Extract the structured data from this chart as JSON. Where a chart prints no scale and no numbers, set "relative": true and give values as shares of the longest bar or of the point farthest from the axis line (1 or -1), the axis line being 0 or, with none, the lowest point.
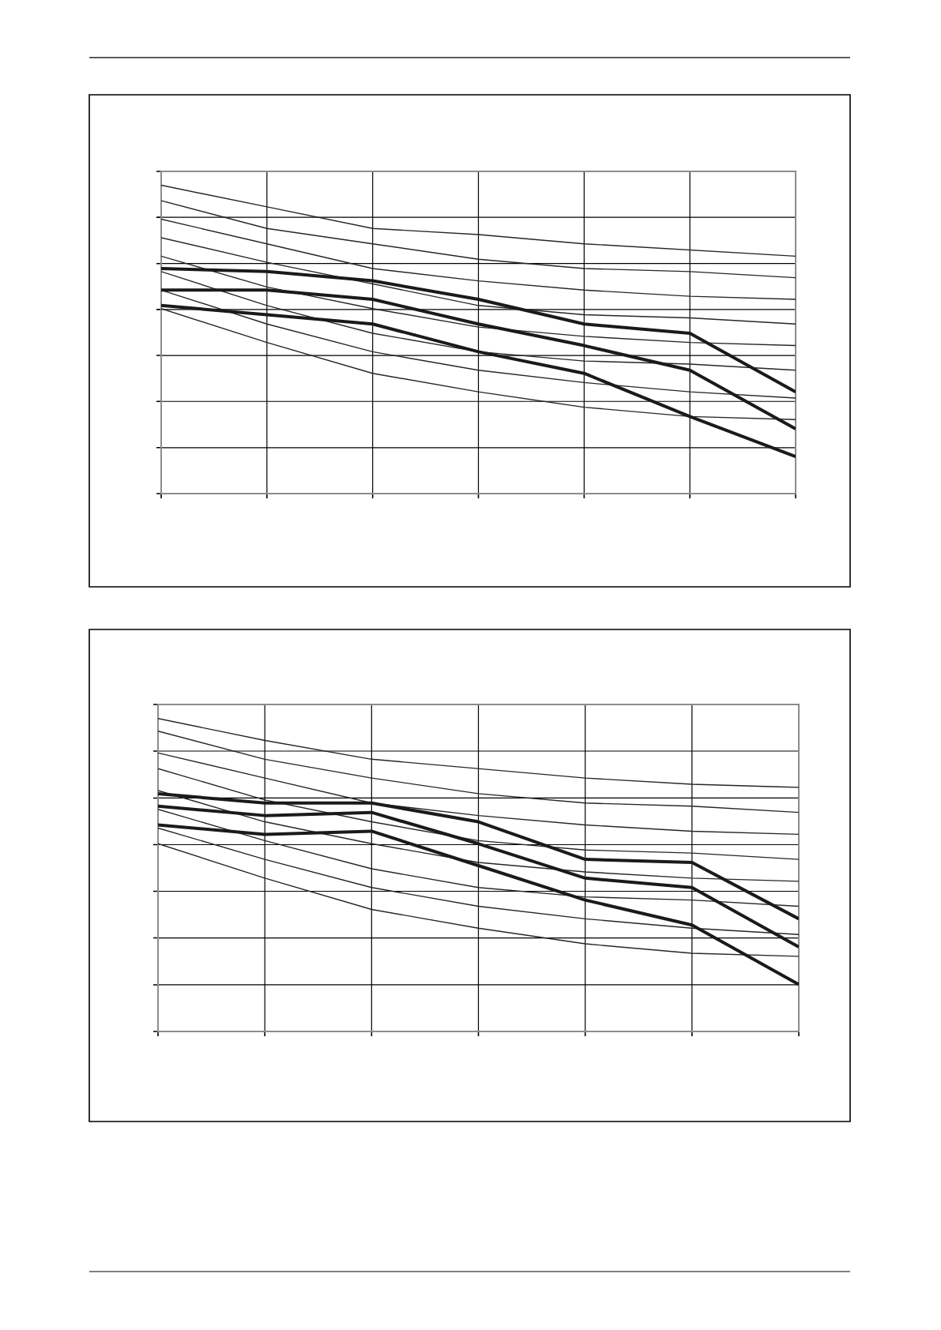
{
  "chart_data": [
    {
      "type": "line",
      "relative": true,
      "grid": true,
      "categories": [
        null,
        null,
        null,
        null,
        null,
        null,
        null
      ],
      "series": [
        {
          "color": "#262626",
          "values": [
            1.0,
            0.93,
            0.86,
            0.84,
            0.81,
            0.79,
            0.77
          ]
        },
        {
          "color": "#262626",
          "values": [
            0.95,
            0.86,
            0.81,
            0.76,
            0.73,
            0.72,
            0.7
          ]
        },
        {
          "color": "#262626",
          "values": [
            0.89,
            0.81,
            0.73,
            0.69,
            0.66,
            0.64,
            0.63
          ]
        },
        {
          "color": "#262626",
          "values": [
            0.83,
            0.75,
            0.68,
            0.61,
            0.58,
            0.57,
            0.55
          ]
        },
        {
          "color": "#262626",
          "values": [
            0.77,
            0.67,
            0.6,
            0.54,
            0.51,
            0.49,
            0.48
          ]
        },
        {
          "color": "#262626",
          "values": [
            0.72,
            0.61,
            0.52,
            0.46,
            0.43,
            0.42,
            0.4
          ]
        },
        {
          "color": "#262626",
          "values": [
            0.66,
            0.55,
            0.46,
            0.4,
            0.36,
            0.33,
            0.31
          ]
        },
        {
          "color": "#262626",
          "values": [
            0.6,
            0.49,
            0.39,
            0.33,
            0.28,
            0.25,
            0.24
          ]
        },
        {
          "color": "#1a1a1a",
          "values": [
            0.73,
            0.72,
            0.69,
            0.63,
            0.55,
            0.52,
            0.33
          ]
        },
        {
          "color": "#1a1a1a",
          "values": [
            0.66,
            0.66,
            0.63,
            0.55,
            0.48,
            0.4,
            0.21
          ]
        },
        {
          "color": "#1a1a1a",
          "values": [
            0.61,
            0.58,
            0.55,
            0.46,
            0.39,
            0.25,
            0.12
          ]
        }
      ]
    },
    {
      "type": "line",
      "relative": true,
      "grid": true,
      "categories": [
        null,
        null,
        null,
        null,
        null,
        null,
        null
      ],
      "series": [
        {
          "color": "#262626",
          "values": [
            1.0,
            0.93,
            0.87,
            0.84,
            0.81,
            0.79,
            0.78
          ]
        },
        {
          "color": "#262626",
          "values": [
            0.96,
            0.87,
            0.81,
            0.76,
            0.73,
            0.72,
            0.7
          ]
        },
        {
          "color": "#262626",
          "values": [
            0.89,
            0.81,
            0.73,
            0.69,
            0.66,
            0.64,
            0.63
          ]
        },
        {
          "color": "#262626",
          "values": [
            0.84,
            0.74,
            0.67,
            0.61,
            0.58,
            0.57,
            0.55
          ]
        },
        {
          "color": "#262626",
          "values": [
            0.77,
            0.67,
            0.6,
            0.54,
            0.51,
            0.49,
            0.48
          ]
        },
        {
          "color": "#262626",
          "values": [
            0.71,
            0.61,
            0.52,
            0.46,
            0.43,
            0.42,
            0.4
          ]
        },
        {
          "color": "#262626",
          "values": [
            0.65,
            0.55,
            0.46,
            0.4,
            0.36,
            0.33,
            0.31
          ]
        },
        {
          "color": "#262626",
          "values": [
            0.6,
            0.49,
            0.39,
            0.33,
            0.28,
            0.25,
            0.24
          ]
        },
        {
          "color": "#1a1a1a",
          "values": [
            0.76,
            0.73,
            0.73,
            0.67,
            0.55,
            0.54,
            0.36
          ]
        },
        {
          "color": "#1a1a1a",
          "values": [
            0.72,
            0.69,
            0.7,
            0.6,
            0.49,
            0.46,
            0.27
          ]
        },
        {
          "color": "#1a1a1a",
          "values": [
            0.66,
            0.63,
            0.64,
            0.53,
            0.42,
            0.34,
            0.15
          ]
        }
      ]
    }
  ]
}
